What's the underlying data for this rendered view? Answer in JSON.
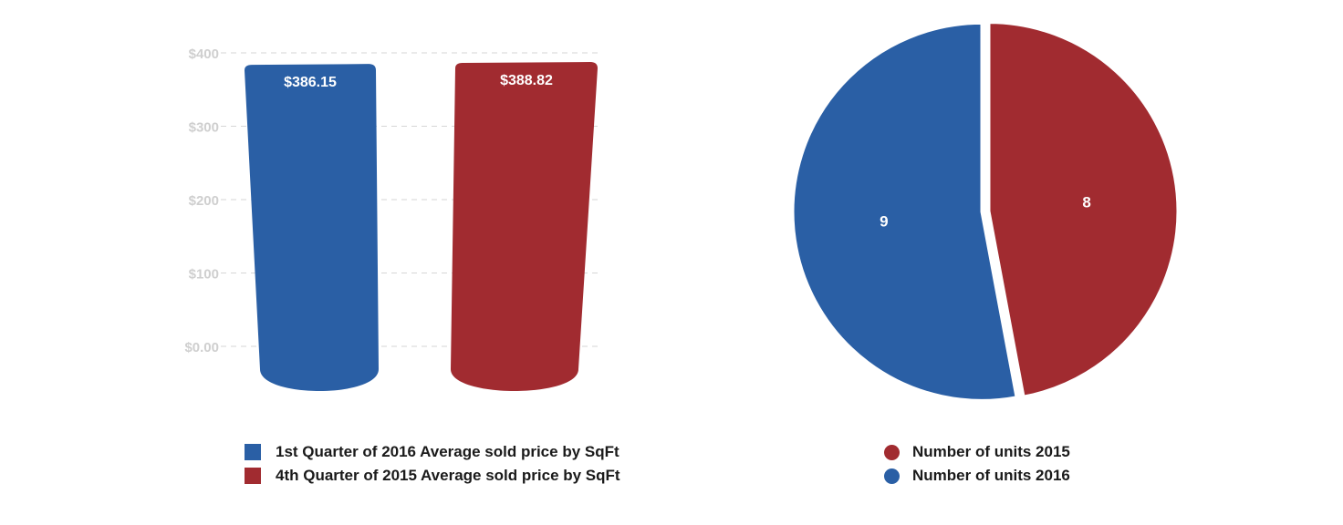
{
  "chart_data": [
    {
      "type": "bar",
      "categories": [
        "1st Quarter of 2016 Average sold price by SqFt",
        "4th Quarter of 2015 Average sold price by SqFt"
      ],
      "values": [
        386.15,
        388.82
      ],
      "value_labels": [
        "$386.15",
        "$388.82"
      ],
      "colors": [
        "#2a5fa5",
        "#a12b30"
      ],
      "ylim": [
        0,
        400
      ],
      "yticks": [
        0,
        100,
        200,
        300,
        400
      ],
      "ytick_labels": [
        "$0.00",
        "$100",
        "$200",
        "$300",
        "$400"
      ],
      "grid": true,
      "legend_position": "bottom"
    },
    {
      "type": "pie",
      "labels": [
        "Number of units 2015",
        "Number of units 2016"
      ],
      "values": [
        8,
        9
      ],
      "value_labels": [
        "8",
        "9"
      ],
      "colors": [
        "#a12b30",
        "#2a5fa5"
      ],
      "legend_position": "bottom"
    }
  ]
}
